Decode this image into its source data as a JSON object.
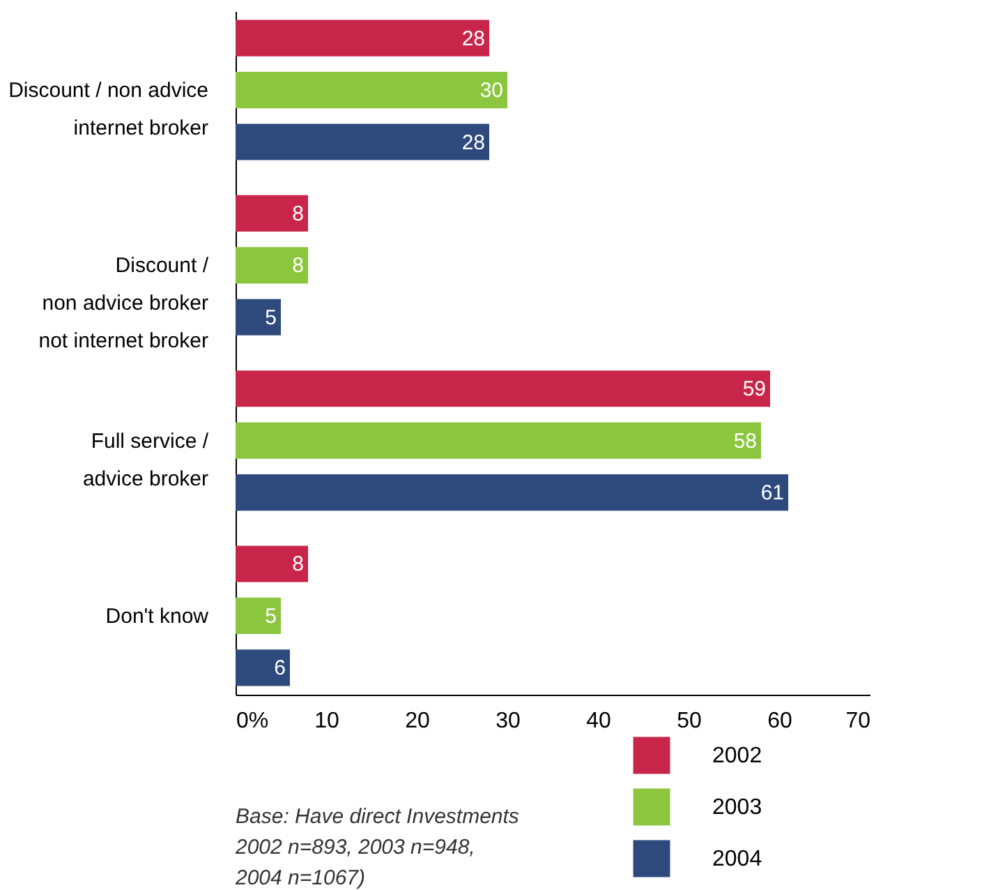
{
  "chart_data": {
    "type": "bar",
    "orientation": "horizontal",
    "categories": [
      "Discount / non advice\ninternet broker",
      "Discount /\nnon advice broker\nnot internet broker",
      "Full service /\nadvice broker",
      "Don't know"
    ],
    "series": [
      {
        "name": "2002",
        "color": "#c8254a",
        "values": [
          28,
          8,
          59,
          8
        ]
      },
      {
        "name": "2003",
        "color": "#8cc63f",
        "values": [
          30,
          8,
          58,
          5
        ]
      },
      {
        "name": "2004",
        "color": "#2e4a7d",
        "values": [
          28,
          5,
          61,
          6
        ]
      }
    ],
    "xlim": [
      0,
      70
    ],
    "xticks": [
      {
        "value": 0,
        "label": "0%"
      },
      10,
      20,
      30,
      40,
      50,
      60,
      70
    ],
    "data_labels": true,
    "grid": false,
    "legend": "bottom right",
    "annotations": [
      "Base: Have direct Investments\n2002 n=893, 2003 n=948,\n2004 n=1067)"
    ]
  }
}
